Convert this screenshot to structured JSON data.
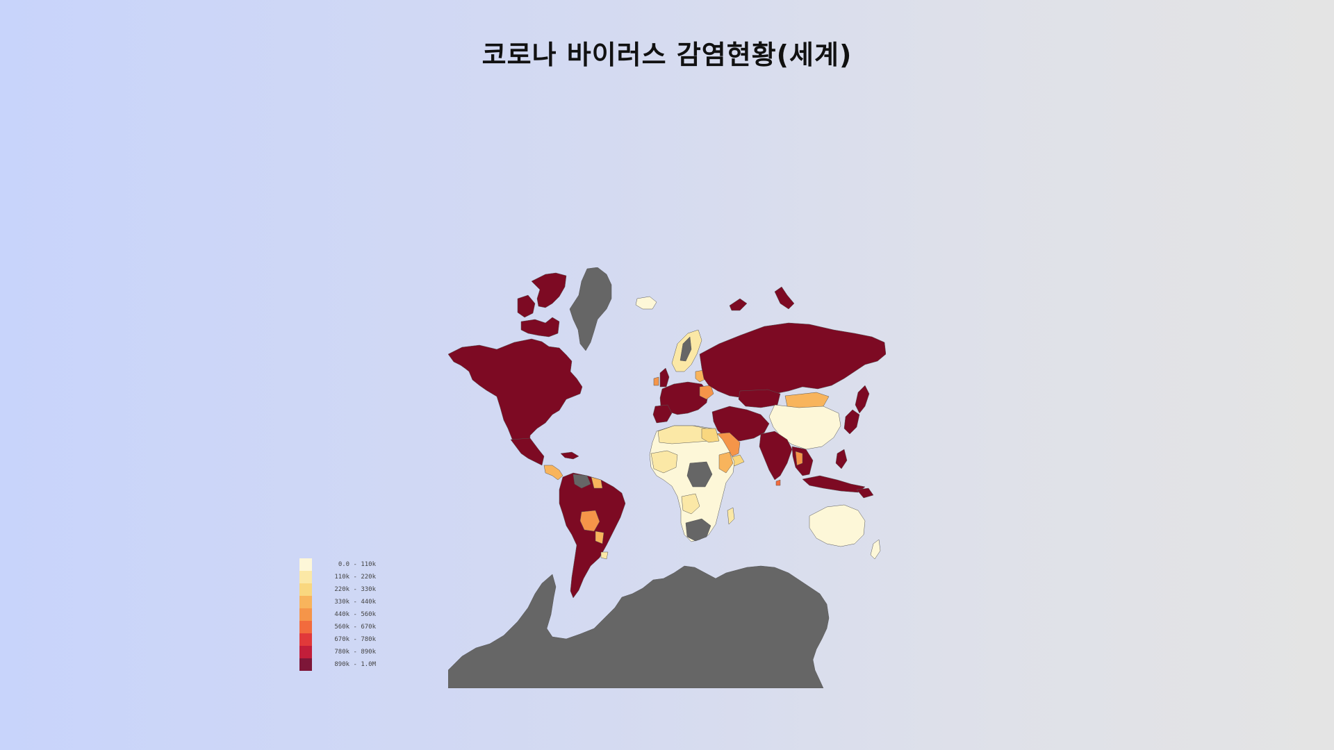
{
  "title": "코로나 바이러스 감염현황(세계)",
  "legend": {
    "items": [
      {
        "label": "0.0 - 110k",
        "color": "#fdf7d8"
      },
      {
        "label": "110k - 220k",
        "color": "#fbe8a6"
      },
      {
        "label": "220k - 330k",
        "color": "#f9d77f"
      },
      {
        "label": "330k - 440k",
        "color": "#f8b45c"
      },
      {
        "label": "440k - 560k",
        "color": "#f59549"
      },
      {
        "label": "560k - 670k",
        "color": "#f26b3d"
      },
      {
        "label": "670k - 780k",
        "color": "#e1393a"
      },
      {
        "label": "780k - 890k",
        "color": "#c21e3a"
      },
      {
        "label": "890k - 1.0M",
        "color": "#7d1638"
      }
    ]
  },
  "colors": {
    "high": "#7d0a23",
    "mid_orange": "#f59549",
    "light_orange": "#f8b45c",
    "pale_yellow": "#fdf7d8",
    "light_yellow": "#fbe8a6",
    "no_data": "#666666"
  }
}
